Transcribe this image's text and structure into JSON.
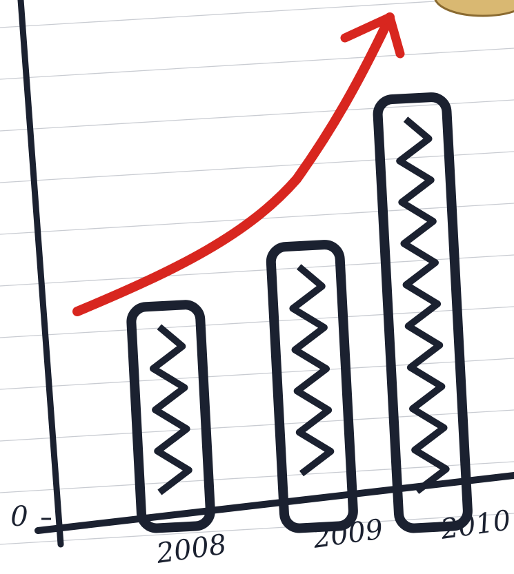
{
  "chart_data": {
    "type": "bar",
    "categories": [
      "2008",
      "2009",
      "2010"
    ],
    "values": [
      380,
      490,
      760
    ],
    "color": "#1b2130",
    "ylim": [
      0,
      800
    ],
    "yticks": [
      0
    ],
    "grid": false
  }
}
